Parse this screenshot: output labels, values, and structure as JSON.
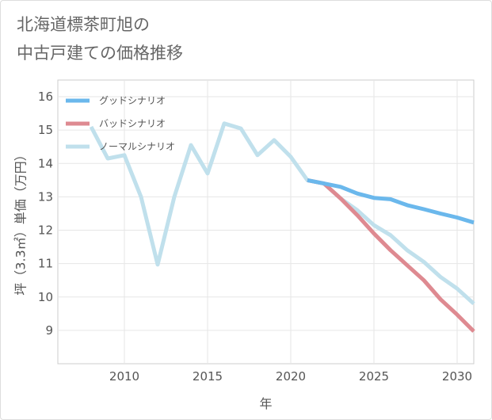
{
  "title_lines": [
    "北海道標茶町旭の",
    "中古戸建ての価格推移"
  ],
  "chart_data": {
    "type": "line",
    "title": "北海道標茶町旭の中古戸建ての価格推移",
    "xlabel": "年",
    "ylabel": "坪（3.3㎡）単価（万円）",
    "xlim": [
      2006,
      2031
    ],
    "ylim": [
      8,
      16.5
    ],
    "x_ticks": [
      2010,
      2015,
      2020,
      2025,
      2030
    ],
    "y_ticks": [
      9,
      10,
      11,
      12,
      13,
      14,
      15,
      16
    ],
    "grid": true,
    "legend_position": "top-left",
    "series": [
      {
        "name": "グッドシナリオ",
        "color": "#6bb8ec",
        "x": [
          2021,
          2022,
          2023,
          2024,
          2025,
          2026,
          2027,
          2028,
          2029,
          2030,
          2031
        ],
        "values": [
          13.5,
          13.4,
          13.3,
          13.1,
          12.97,
          12.93,
          12.75,
          12.63,
          12.5,
          12.38,
          12.23
        ]
      },
      {
        "name": "バッドシナリオ",
        "color": "#de8a91",
        "x": [
          2021,
          2022,
          2023,
          2024,
          2025,
          2026,
          2027,
          2028,
          2029,
          2030,
          2031
        ],
        "values": [
          13.5,
          13.4,
          12.95,
          12.45,
          11.9,
          11.4,
          10.95,
          10.5,
          9.93,
          9.47,
          8.97
        ]
      },
      {
        "name": "ノーマルシナリオ",
        "color": "#c0e0ec",
        "x": [
          2008,
          2009,
          2010,
          2011,
          2012,
          2013,
          2014,
          2015,
          2016,
          2017,
          2018,
          2019,
          2020,
          2021,
          2022,
          2023,
          2024,
          2025,
          2026,
          2027,
          2028,
          2029,
          2030,
          2031
        ],
        "values": [
          15.1,
          14.15,
          14.25,
          13.0,
          10.97,
          13.0,
          14.55,
          13.7,
          15.2,
          15.05,
          14.25,
          14.7,
          14.2,
          13.5,
          13.4,
          12.95,
          12.6,
          12.15,
          11.85,
          11.4,
          11.05,
          10.6,
          10.25,
          9.8
        ]
      }
    ]
  }
}
